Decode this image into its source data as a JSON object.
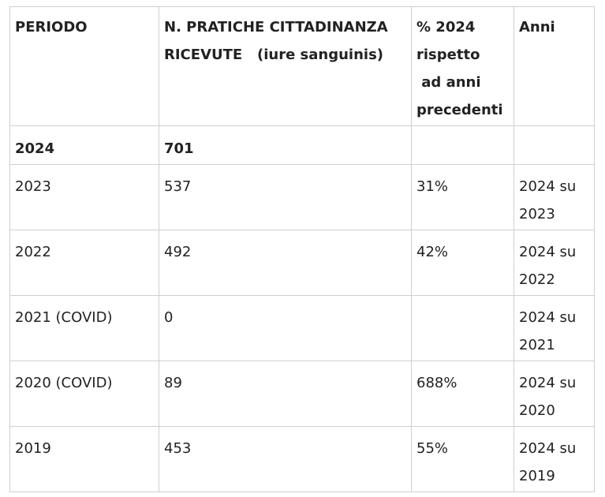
{
  "table": {
    "headers": [
      {
        "lines": [
          "PERIODO"
        ]
      },
      {
        "lines": [
          "N. PRATICHE CITTADINANZA",
          "RICEVUTE   (iure sanguinis)"
        ]
      },
      {
        "lines": [
          "% 2024",
          "rispetto",
          " ad anni",
          "precedenti"
        ]
      },
      {
        "lines": [
          "Anni"
        ]
      }
    ],
    "rows": [
      {
        "period": "2024",
        "count": "701",
        "pct": "",
        "years": ""
      },
      {
        "period": "2023",
        "count": "537",
        "pct": "31%",
        "years": "2024 su 2023"
      },
      {
        "period": "2022",
        "count": "492",
        "pct": "42%",
        "years": "2024 su 2022"
      },
      {
        "period": "2021 (COVID)",
        "count": "0",
        "pct": "",
        "years": "2024 su 2021"
      },
      {
        "period": "2020 (COVID)",
        "count": "89",
        "pct": "688%",
        "years": "2024 su 2020"
      },
      {
        "period": "2019",
        "count": "453",
        "pct": "55%",
        "years": "2024 su 2019"
      }
    ]
  }
}
